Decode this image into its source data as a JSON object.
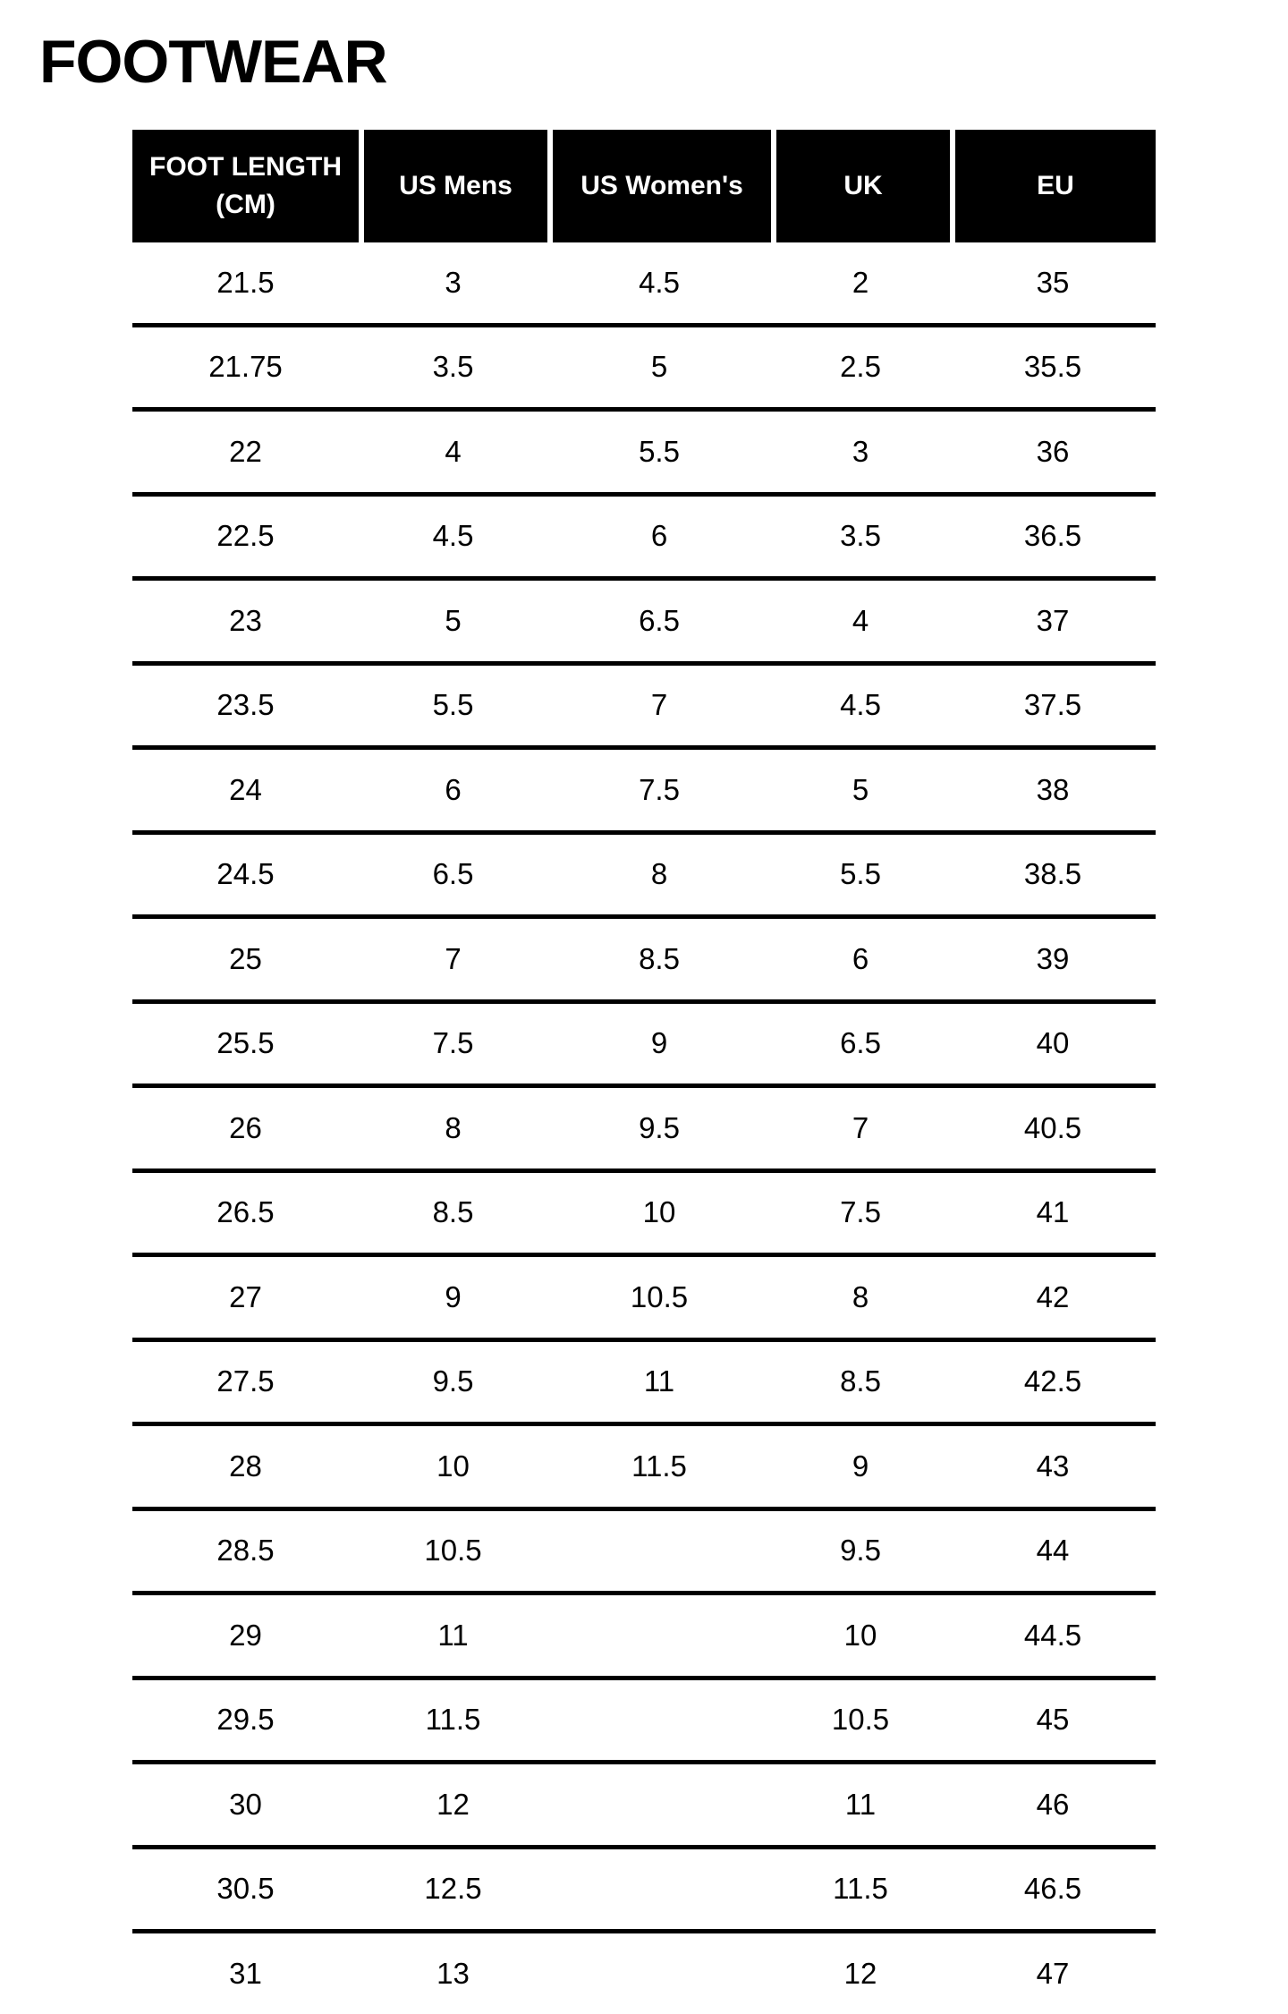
{
  "page": {
    "title": "FOOTWEAR"
  },
  "colors": {
    "page_bg": "#ffffff",
    "header_bg": "#000000",
    "header_text": "#ffffff",
    "body_text": "#000000",
    "row_divider": "#000000"
  },
  "table": {
    "headers": [
      "FOOT LENGTH\n(CM)",
      "US Mens",
      "US Women's",
      "UK",
      "EU"
    ],
    "rows": [
      [
        "21.5",
        "3",
        "4.5",
        "2",
        "35"
      ],
      [
        "21.75",
        "3.5",
        "5",
        "2.5",
        "35.5"
      ],
      [
        "22",
        "4",
        "5.5",
        "3",
        "36"
      ],
      [
        "22.5",
        "4.5",
        "6",
        "3.5",
        "36.5"
      ],
      [
        "23",
        "5",
        "6.5",
        "4",
        "37"
      ],
      [
        "23.5",
        "5.5",
        "7",
        "4.5",
        "37.5"
      ],
      [
        "24",
        "6",
        "7.5",
        "5",
        "38"
      ],
      [
        "24.5",
        "6.5",
        "8",
        "5.5",
        "38.5"
      ],
      [
        "25",
        "7",
        "8.5",
        "6",
        "39"
      ],
      [
        "25.5",
        "7.5",
        "9",
        "6.5",
        "40"
      ],
      [
        "26",
        "8",
        "9.5",
        "7",
        "40.5"
      ],
      [
        "26.5",
        "8.5",
        "10",
        "7.5",
        "41"
      ],
      [
        "27",
        "9",
        "10.5",
        "8",
        "42"
      ],
      [
        "27.5",
        "9.5",
        "11",
        "8.5",
        "42.5"
      ],
      [
        "28",
        "10",
        "11.5",
        "9",
        "43"
      ],
      [
        "28.5",
        "10.5",
        "",
        "9.5",
        "44"
      ],
      [
        "29",
        "11",
        "",
        "10",
        "44.5"
      ],
      [
        "29.5",
        "11.5",
        "",
        "10.5",
        "45"
      ],
      [
        "30",
        "12",
        "",
        "11",
        "46"
      ],
      [
        "30.5",
        "12.5",
        "",
        "11.5",
        "46.5"
      ],
      [
        "31",
        "13",
        "",
        "12",
        "47"
      ]
    ]
  }
}
